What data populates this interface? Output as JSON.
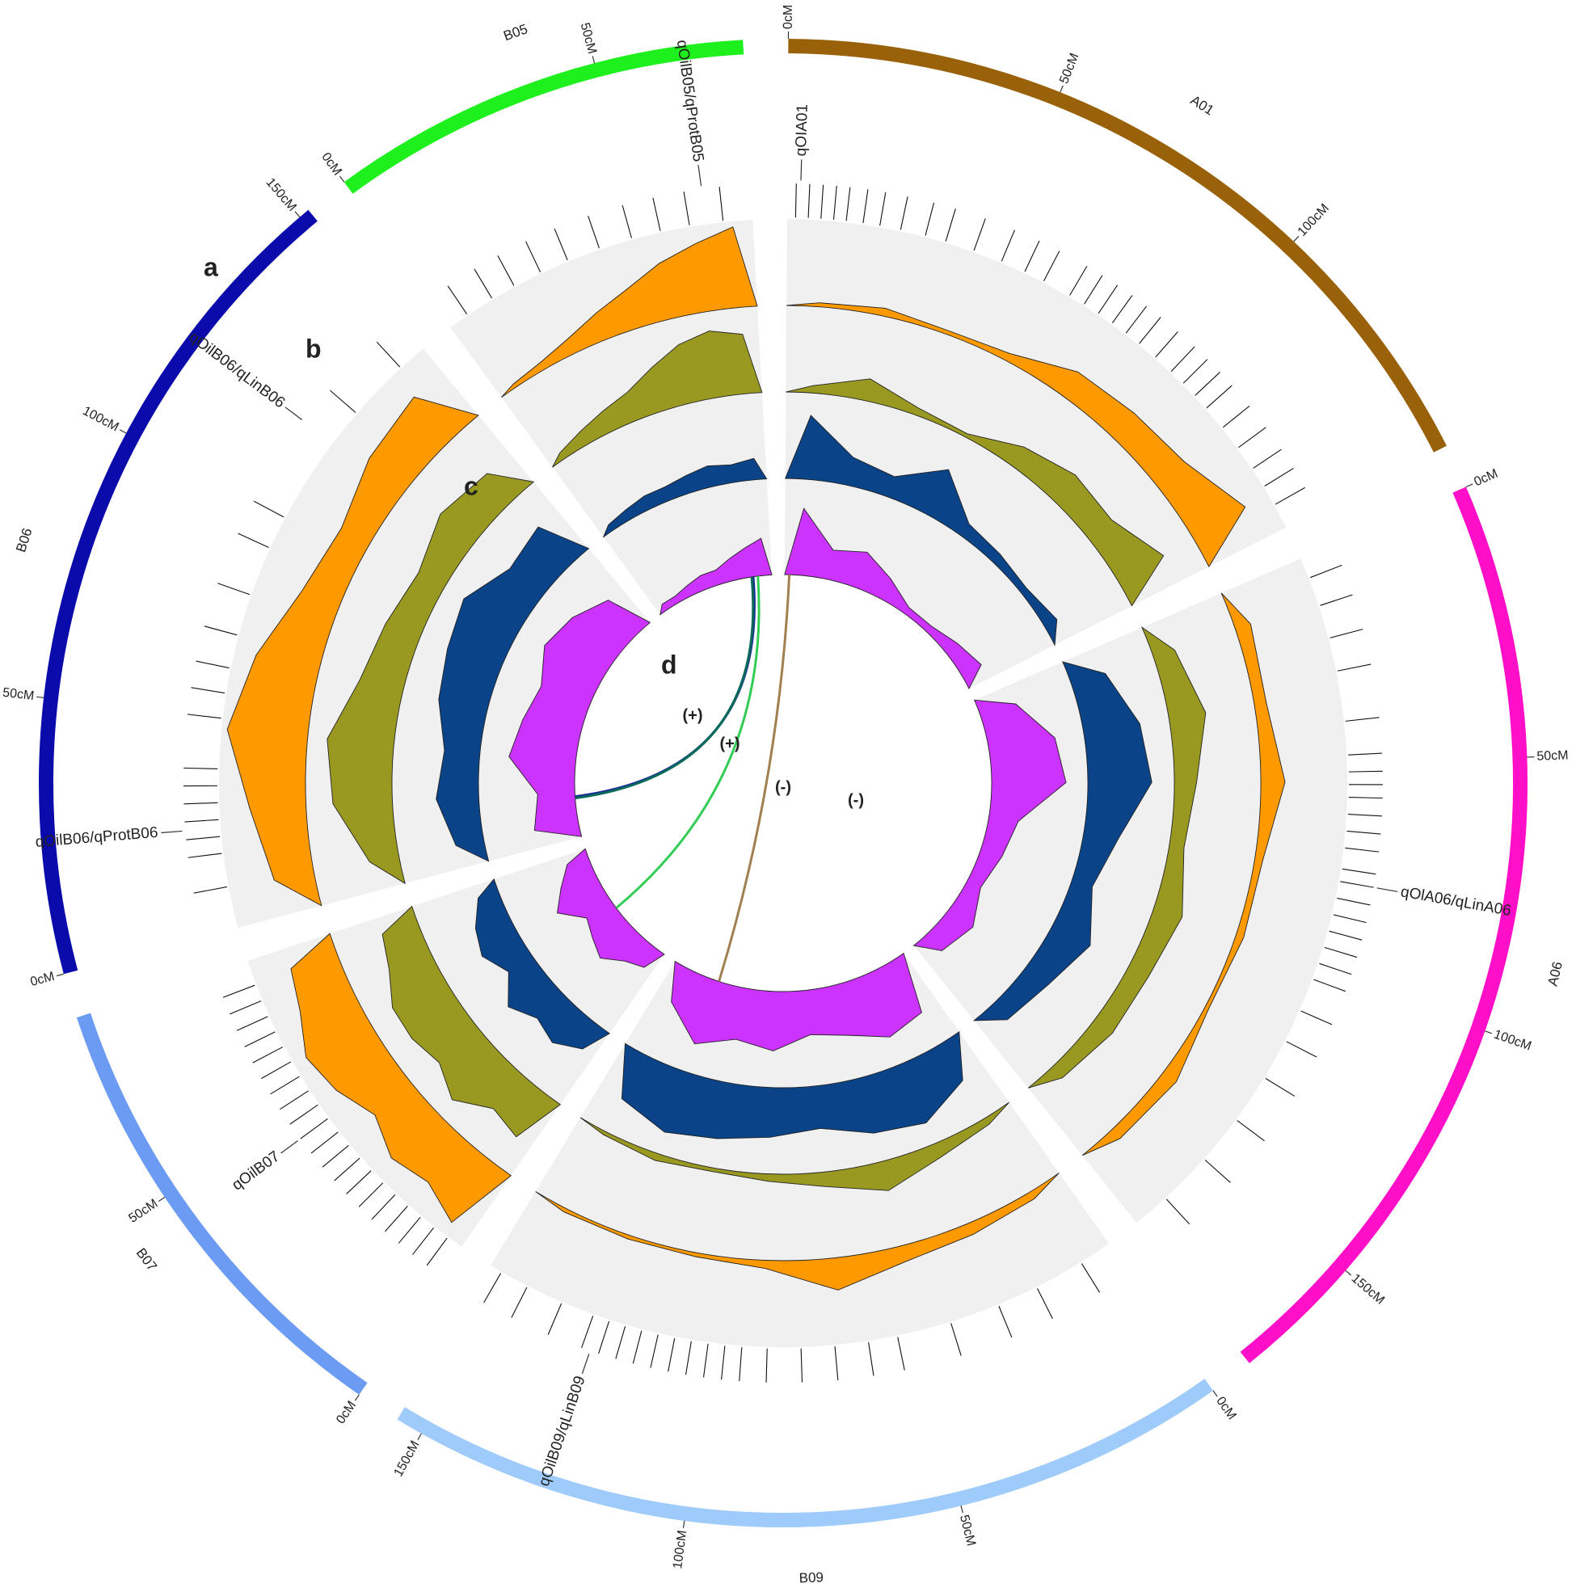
{
  "panel_labels": [
    "a",
    "b",
    "c",
    "d"
  ],
  "track_colors": [
    "#ff9900",
    "#999922",
    "#0a4388",
    "#cc33ff"
  ],
  "chromosomes": [
    {
      "name": "A01",
      "color": "#99610a",
      "length": 146,
      "ticks": [
        {
          "value": 0,
          "label": "0cM"
        },
        {
          "value": 50,
          "label": "50cM"
        },
        {
          "value": 100,
          "label": "100cM"
        }
      ],
      "markers": [
        2,
        5,
        8,
        11,
        14,
        18,
        22,
        27,
        33,
        38,
        45,
        52,
        58,
        63,
        70,
        74,
        78,
        82,
        86,
        90,
        95,
        100,
        104,
        108,
        112,
        118,
        124,
        130,
        135,
        140
      ],
      "tracks": [
        [
          0.05,
          0.1,
          0.05,
          0.1,
          0.35,
          0.4,
          0.45,
          0.75
        ],
        [
          0.1,
          0.3,
          0.1,
          0.05,
          0.3,
          0.45,
          0.4,
          0.7
        ],
        [
          0.9,
          0.4,
          0.3,
          0.7,
          0.2,
          0.15,
          0.1,
          0.2
        ],
        [
          0.9,
          0.4,
          0.5,
          0.3,
          0.1,
          0.1,
          0.2,
          0.3
        ]
      ]
    },
    {
      "name": "A06",
      "color": "#ff10c8",
      "length": 174,
      "ticks": [
        {
          "value": 0,
          "label": "0cM"
        },
        {
          "value": 50,
          "label": "50cM"
        },
        {
          "value": 100,
          "label": "100cM"
        },
        {
          "value": 150,
          "label": "150cM"
        }
      ],
      "markers": [
        5,
        12,
        20,
        28,
        40,
        48,
        52,
        55,
        58,
        62,
        66,
        70,
        75,
        78,
        82,
        86,
        90,
        94,
        98,
        102,
        110,
        118,
        128,
        140,
        152,
        165
      ],
      "tracks": [
        [
          0.2,
          0.15,
          0.3,
          0.1,
          0.1,
          0.05,
          0.2,
          0.15
        ],
        [
          0.3,
          0.5,
          0.3,
          0.2,
          0.4,
          0.3,
          0.3,
          0.2
        ],
        [
          0.5,
          0.8,
          0.9,
          0.5,
          0.3,
          0.6,
          0.4,
          0.3
        ],
        [
          0.5,
          0.9,
          1,
          0.4,
          0.3,
          0.2,
          0.4,
          0.3
        ]
      ]
    },
    {
      "name": "B09",
      "color": "#9ecbfa",
      "length": 155,
      "ticks": [
        {
          "value": 0,
          "label": "0cM"
        },
        {
          "value": 50,
          "label": "50cM"
        },
        {
          "value": 100,
          "label": "100cM"
        },
        {
          "value": 150,
          "label": "150cM"
        }
      ],
      "markers": [
        8,
        20,
        30,
        42,
        55,
        62,
        70,
        78,
        86,
        92,
        96,
        100,
        104,
        108,
        112,
        116,
        120,
        124,
        128,
        136,
        145,
        152
      ],
      "tracks": [
        [
          0.1,
          0.15,
          0.2,
          0.4,
          0.1,
          0.05,
          0.05,
          0.05
        ],
        [
          0.1,
          0.2,
          0.4,
          0.2,
          0.1,
          0.05,
          0.1,
          0.05
        ],
        [
          0.6,
          0.9,
          0.8,
          0.6,
          0.7,
          0.8,
          0.9,
          0.7
        ],
        [
          0.8,
          0.9,
          0.7,
          0.6,
          0.8,
          0.7,
          0.9,
          0.5
        ]
      ]
    },
    {
      "name": "B07",
      "color": "#6b9bf2",
      "length": 86,
      "ticks": [
        {
          "value": 0,
          "label": "0cM"
        },
        {
          "value": 50,
          "label": "50cM"
        }
      ],
      "markers": [
        4,
        8,
        12,
        16,
        20,
        24,
        28,
        32,
        36,
        40,
        44,
        48,
        52,
        56,
        60,
        64,
        68,
        72,
        76,
        80
      ],
      "tracks": [
        [
          0.9,
          0.7,
          0.8,
          0.6,
          0.8,
          0.9,
          0.7,
          0.6
        ],
        [
          0.7,
          0.6,
          0.9,
          0.7,
          0.8,
          0.8,
          0.6,
          0.5
        ],
        [
          0.4,
          0.6,
          0.5,
          0.7,
          0.4,
          0.6,
          0.5,
          0.3
        ],
        [
          0.3,
          0.4,
          0.6,
          0.5,
          0.4,
          0.7,
          0.5,
          0.3
        ]
      ]
    },
    {
      "name": "B06",
      "color": "#0b0bab",
      "length": 152,
      "ticks": [
        {
          "value": 0,
          "label": "0cM"
        },
        {
          "value": 50,
          "label": "50cM"
        },
        {
          "value": 100,
          "label": "100cM"
        },
        {
          "value": 150,
          "label": "150cM"
        }
      ],
      "markers": [
        10,
        18,
        22,
        26,
        30,
        34,
        38,
        50,
        56,
        62,
        70,
        80,
        92,
        100,
        130,
        145
      ],
      "tracks": [
        [
          0.5,
          0.7,
          1,
          0.8,
          0.5,
          0.4,
          0.6,
          0.7
        ],
        [
          0.4,
          0.8,
          0.9,
          0.6,
          0.5,
          0.4,
          0.6,
          0.5
        ],
        [
          0.4,
          0.6,
          0.5,
          0.7,
          0.8,
          0.9,
          0.6,
          0.7
        ],
        [
          0.6,
          0.5,
          0.9,
          0.8,
          0.7,
          0.9,
          0.8,
          0.6
        ]
      ]
    },
    {
      "name": "B05",
      "color": "#1ef01e",
      "length": 77,
      "ticks": [
        {
          "value": 0,
          "label": "0cM"
        },
        {
          "value": 50,
          "label": "50cM"
        }
      ],
      "markers": [
        5,
        12,
        18,
        25,
        32,
        40,
        48,
        55,
        62,
        70
      ],
      "tracks": [
        [
          0.05,
          0.1,
          0.2,
          0.35,
          0.5,
          0.7,
          0.85,
          1
        ],
        [
          0.1,
          0.2,
          0.3,
          0.4,
          0.6,
          0.8,
          0.9,
          0.8
        ],
        [
          0.1,
          0.15,
          0.2,
          0.2,
          0.25,
          0.3,
          0.25,
          0.3
        ],
        [
          0.1,
          0.1,
          0.15,
          0.2,
          0.2,
          0.3,
          0.4,
          0.5
        ]
      ]
    }
  ],
  "qtls": [
    {
      "chromosome": "A01",
      "position": 3,
      "label": "qOIA01"
    },
    {
      "chromosome": "A06",
      "position": 78,
      "label": "qOlA06/qLinA06"
    },
    {
      "chromosome": "B09",
      "position": 126,
      "label": "qOilB09/qLinB09"
    },
    {
      "chromosome": "B07",
      "position": 44,
      "label": "qOilB07"
    },
    {
      "chromosome": "B06",
      "position": 24,
      "label": "qOilB06/qProtB06"
    },
    {
      "chromosome": "B06",
      "position": 121,
      "label": "qOilB06/qLinB06"
    },
    {
      "chromosome": "B05",
      "position": 66,
      "label": "qOilB05/qProtB05"
    }
  ],
  "links": [
    {
      "from": {
        "chromosome": "B05",
        "position": 65
      },
      "to": {
        "chromosome": "B06",
        "position": 26
      },
      "color": "#1a2a9a",
      "label": "(+)"
    },
    {
      "from": {
        "chromosome": "B05",
        "position": 64
      },
      "to": {
        "chromosome": "B06",
        "position": 25
      },
      "color": "#0a6a5a",
      "label": "(+)"
    },
    {
      "from": {
        "chromosome": "B05",
        "position": 68
      },
      "to": {
        "chromosome": "B07",
        "position": 43
      },
      "color": "#33cc55",
      "label": "(-)"
    },
    {
      "from": {
        "chromosome": "A01",
        "position": 3
      },
      "to": {
        "chromosome": "B09",
        "position": 124
      },
      "color": "#a08050",
      "label": "(-)"
    }
  ]
}
